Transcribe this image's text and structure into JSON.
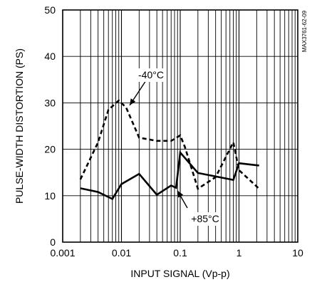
{
  "chart_data": {
    "type": "line",
    "title": "",
    "xlabel": "INPUT SIGNAL (Vp-p)",
    "ylabel": "PULSE-WIDTH DISTORTION (PS)",
    "xscale": "log",
    "xlim": [
      0.001,
      10
    ],
    "ylim": [
      0,
      50
    ],
    "x_ticks": [
      0.001,
      0.01,
      0.1,
      1,
      10
    ],
    "x_tick_labels": [
      "0.001",
      "0.01",
      "0.1",
      "1",
      "10"
    ],
    "y_ticks": [
      0,
      10,
      20,
      30,
      40,
      50
    ],
    "y_tick_labels": [
      "0",
      "10",
      "20",
      "30",
      "40",
      "50"
    ],
    "grid": true,
    "series": [
      {
        "name": "-40°C",
        "style": "dashed",
        "x": [
          0.002,
          0.004,
          0.006,
          0.009,
          0.012,
          0.02,
          0.04,
          0.07,
          0.1,
          0.12,
          0.2,
          0.4,
          0.8,
          1.0,
          2.2
        ],
        "y": [
          13.5,
          21.5,
          28.5,
          30.5,
          29,
          22.5,
          21.8,
          21.8,
          23,
          20.5,
          11.5,
          14,
          21.5,
          15.5,
          11.5
        ]
      },
      {
        "name": "+85°C",
        "style": "solid",
        "x": [
          0.002,
          0.004,
          0.007,
          0.01,
          0.02,
          0.04,
          0.07,
          0.085,
          0.1,
          0.2,
          0.8,
          1.0,
          2.2
        ],
        "y": [
          11.6,
          10.8,
          9.3,
          12.5,
          14.7,
          10.2,
          12.2,
          11.7,
          19.3,
          14.9,
          13.4,
          17.0,
          16.5
        ]
      }
    ],
    "annotations": [
      "-40°C",
      "+85°C"
    ],
    "side_label": "MAX3761-62-09"
  }
}
